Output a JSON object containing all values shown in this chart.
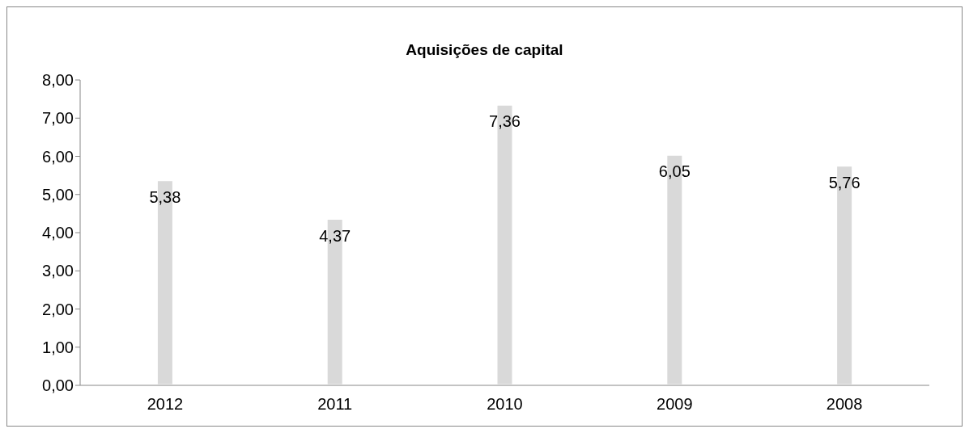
{
  "chart_data": {
    "type": "bar",
    "title": "Aquisições de capital",
    "categories": [
      "2012",
      "2011",
      "2010",
      "2009",
      "2008"
    ],
    "values": [
      5.38,
      4.37,
      7.36,
      6.05,
      5.76
    ],
    "value_labels": [
      "5,38",
      "4,37",
      "7,36",
      "6,05",
      "5,76"
    ],
    "color": "#d9d9d9",
    "ylim": [
      0,
      8
    ],
    "yticks": [
      {
        "value": 0,
        "label": "0,00"
      },
      {
        "value": 1,
        "label": "1,00"
      },
      {
        "value": 2,
        "label": "2,00"
      },
      {
        "value": 3,
        "label": "3,00"
      },
      {
        "value": 4,
        "label": "4,00"
      },
      {
        "value": 5,
        "label": "5,00"
      },
      {
        "value": 6,
        "label": "6,00"
      },
      {
        "value": 7,
        "label": "7,00"
      },
      {
        "value": 8,
        "label": "8,00"
      }
    ],
    "grid": false,
    "legend": false
  }
}
